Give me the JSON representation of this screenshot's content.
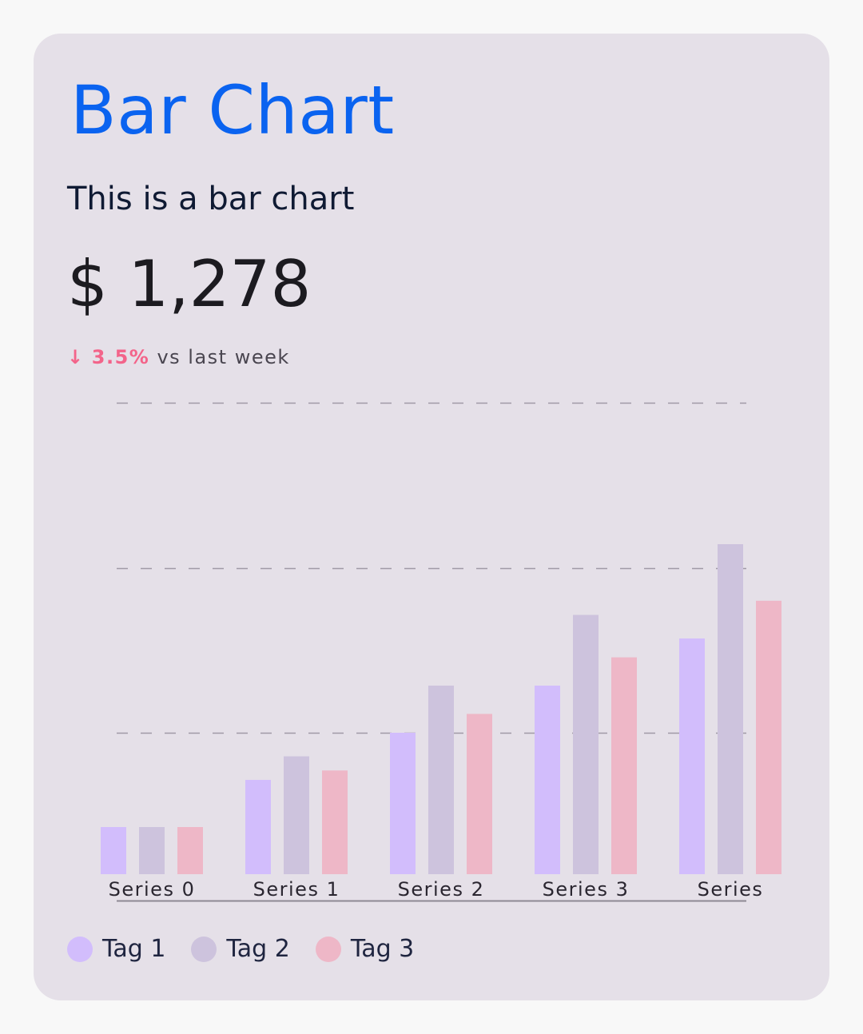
{
  "card": {
    "title": "Bar Chart",
    "subtitle": "This is a bar chart",
    "amount": "$ 1,278",
    "delta_arrow": "↓",
    "delta_value": "3.5%",
    "delta_text": "vs last week"
  },
  "colors": {
    "title": "#0a63f0",
    "delta_down": "#f3648a",
    "tag1": "#d2bdfc",
    "tag2": "#cdc3dd",
    "tag3": "#eeb7c7",
    "grid": "#a09aa6",
    "axis": "#8e8994"
  },
  "chart_data": {
    "type": "bar",
    "categories": [
      "Series 0",
      "Series 1",
      "Series 2",
      "Series 3",
      "Series"
    ],
    "series": [
      {
        "name": "Tag 1",
        "values": [
          1,
          2,
          3,
          4,
          5
        ]
      },
      {
        "name": "Tag 2",
        "values": [
          1,
          2.5,
          4,
          5.5,
          7
        ]
      },
      {
        "name": "Tag 3",
        "values": [
          1,
          2.2,
          3.4,
          4.6,
          5.8
        ]
      }
    ],
    "ylim": [
      0,
      10
    ],
    "gridlines": [
      3,
      6.5,
      10
    ],
    "grid": true,
    "grid_style": "dashed",
    "legend": "bottom-left",
    "title": "",
    "xlabel": "",
    "ylabel": ""
  }
}
